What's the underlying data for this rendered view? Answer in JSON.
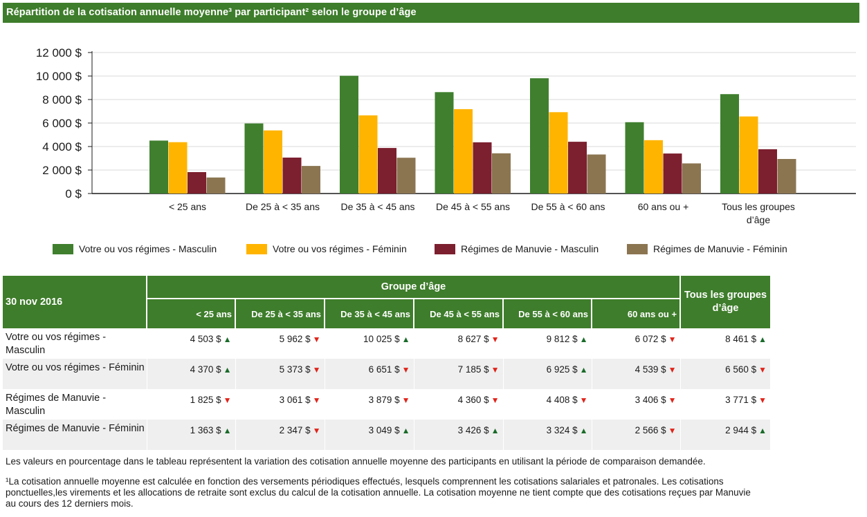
{
  "title": "Répartition de la cotisation annuelle moyenne³ par participant² selon le groupe d’âge",
  "colors": {
    "header_green": "#3e7d2b",
    "series": [
      "#3f7f2e",
      "#ffb400",
      "#7c1f2e",
      "#8b7551"
    ],
    "arrow_up": "#1a6b2a",
    "arrow_down": "#e0241a"
  },
  "chart_data": {
    "type": "bar",
    "categories": [
      "< 25 ans",
      "De 25 à < 35 ans",
      "De 35 à < 45 ans",
      "De 45 à < 55 ans",
      "De 55 à < 60 ans",
      "60 ans ou +",
      "Tous les groupes d’âge"
    ],
    "category_label_lines": [
      [
        "< 25 ans"
      ],
      [
        "De 25 à < 35 ans"
      ],
      [
        "De 35 à < 45 ans"
      ],
      [
        "De 45 à < 55 ans"
      ],
      [
        "De 55 à < 60 ans"
      ],
      [
        "60 ans ou +"
      ],
      [
        "Tous les groupes",
        "d’âge"
      ]
    ],
    "series": [
      {
        "name": "Votre ou vos régimes - Masculin",
        "values": [
          4503,
          5962,
          10025,
          8627,
          9812,
          6072,
          8461
        ]
      },
      {
        "name": "Votre ou vos régimes - Féminin",
        "values": [
          4370,
          5373,
          6651,
          7185,
          6925,
          4539,
          6560
        ]
      },
      {
        "name": "Régimes de Manuvie - Masculin",
        "values": [
          1825,
          3061,
          3879,
          4360,
          4408,
          3406,
          3771
        ]
      },
      {
        "name": "Régimes de Manuvie - Féminin",
        "values": [
          1363,
          2347,
          3049,
          3426,
          3324,
          2566,
          2944
        ]
      }
    ],
    "ylim": [
      0,
      12000
    ],
    "yticks": [
      0,
      2000,
      4000,
      6000,
      8000,
      10000,
      12000
    ],
    "ytick_labels": [
      "0 $",
      "2 000 $",
      "4 000 $",
      "6 000 $",
      "8 000 $",
      "10 000 $",
      "12 000 $"
    ],
    "grid": true,
    "legend_position": "bottom"
  },
  "legend": [
    "Votre ou vos régimes - Masculin",
    "Votre ou vos régimes - Féminin",
    "Régimes de Manuvie - Masculin",
    "Régimes de Manuvie - Féminin"
  ],
  "table": {
    "date_label": "30 nov 2016",
    "group_header": "Groupe d’âge",
    "columns": [
      "< 25 ans",
      "De 25 à < 35 ans",
      "De 35 à < 45 ans",
      "De 45 à < 55 ans",
      "De 55 à < 60 ans",
      "60 ans ou +"
    ],
    "all_groups_header": "Tous les groupes d’âge",
    "rows": [
      {
        "label": "Votre ou vos régimes - Masculin",
        "cells": [
          {
            "value": "4 503 $",
            "trend": "up"
          },
          {
            "value": "5 962 $",
            "trend": "down"
          },
          {
            "value": "10 025 $",
            "trend": "up"
          },
          {
            "value": "8 627 $",
            "trend": "down"
          },
          {
            "value": "9 812 $",
            "trend": "up"
          },
          {
            "value": "6 072 $",
            "trend": "down"
          },
          {
            "value": "8 461 $",
            "trend": "up"
          }
        ]
      },
      {
        "label": "Votre ou vos régimes - Féminin",
        "cells": [
          {
            "value": "4 370 $",
            "trend": "up"
          },
          {
            "value": "5 373 $",
            "trend": "down"
          },
          {
            "value": "6 651 $",
            "trend": "down"
          },
          {
            "value": "7 185 $",
            "trend": "down"
          },
          {
            "value": "6 925 $",
            "trend": "up"
          },
          {
            "value": "4 539 $",
            "trend": "down"
          },
          {
            "value": "6 560 $",
            "trend": "down"
          }
        ]
      },
      {
        "label": "Régimes de Manuvie - Masculin",
        "cells": [
          {
            "value": "1 825 $",
            "trend": "down"
          },
          {
            "value": "3 061 $",
            "trend": "down"
          },
          {
            "value": "3 879 $",
            "trend": "down"
          },
          {
            "value": "4 360 $",
            "trend": "down"
          },
          {
            "value": "4 408 $",
            "trend": "down"
          },
          {
            "value": "3 406 $",
            "trend": "down"
          },
          {
            "value": "3 771 $",
            "trend": "down"
          }
        ]
      },
      {
        "label": "Régimes de Manuvie - Féminin",
        "cells": [
          {
            "value": "1 363 $",
            "trend": "up"
          },
          {
            "value": "2 347 $",
            "trend": "down"
          },
          {
            "value": "3 049 $",
            "trend": "up"
          },
          {
            "value": "3 426 $",
            "trend": "up"
          },
          {
            "value": "3 324 $",
            "trend": "up"
          },
          {
            "value": "2 566 $",
            "trend": "down"
          },
          {
            "value": "2 944 $",
            "trend": "up"
          }
        ]
      }
    ]
  },
  "notes": {
    "variation": "Les valeurs en pourcentage dans le tableau représentent la variation des cotisation annuelle moyenne des participants en utilisant la période de comparaison demandée.",
    "footnote_line1": "¹La cotisation annuelle moyenne est calculée en fonction des versements périodiques effectués, lesquels comprennent les cotisations salariales et patronales. Les cotisations",
    "footnote_line2": "ponctuelles,les virements et les allocations de retraite sont exclus du calcul de la cotisation annuelle. La cotisation moyenne ne tient compte que des cotisations reçues par Manuvie",
    "footnote_line3": "au cours des 12 derniers mois."
  }
}
